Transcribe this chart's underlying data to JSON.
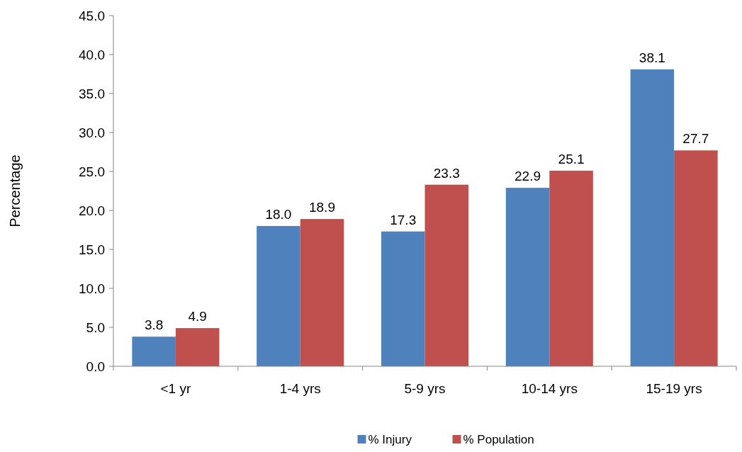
{
  "chart_data": {
    "type": "bar",
    "ylabel": "Percentage",
    "categories": [
      "<1 yr",
      "1-4 yrs",
      "5-9 yrs",
      "10-14 yrs",
      "15-19 yrs"
    ],
    "series": [
      {
        "name": "% Injury",
        "color": "#4f81bd",
        "values": [
          3.8,
          18.0,
          17.3,
          22.9,
          38.1
        ],
        "value_labels": [
          "3.8",
          "18.0",
          "17.3",
          "22.9",
          "38.1"
        ]
      },
      {
        "name": "% Population",
        "color": "#c0504d",
        "values": [
          4.9,
          18.9,
          23.3,
          25.1,
          27.7
        ],
        "value_labels": [
          "4.9",
          "18.9",
          "23.3",
          "25.1",
          "27.7"
        ]
      }
    ],
    "ylim": [
      0,
      45
    ],
    "yticks": [
      {
        "value": 0,
        "label": "0.0"
      },
      {
        "value": 5,
        "label": "5.0"
      },
      {
        "value": 10,
        "label": "10.0"
      },
      {
        "value": 15,
        "label": "15.0"
      },
      {
        "value": 20,
        "label": "20.0"
      },
      {
        "value": 25,
        "label": "25.0"
      },
      {
        "value": 30,
        "label": "30.0"
      },
      {
        "value": 35,
        "label": "35.0"
      },
      {
        "value": 40,
        "label": "40.0"
      },
      {
        "value": 45,
        "label": "45.0"
      }
    ],
    "grid": false,
    "legend": "bottom"
  }
}
